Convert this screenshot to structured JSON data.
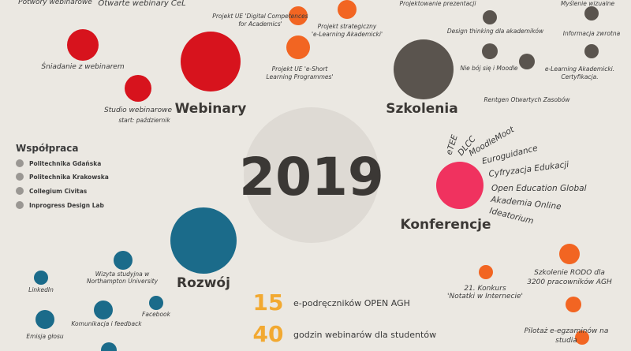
{
  "top": [
    "Potwory webinarowe",
    "Otwarte webinary CeL"
  ],
  "year": "2019",
  "webinary": {
    "title": "Webinary",
    "items": [
      "Śniadanie z webinarem",
      "Studio webinarowe"
    ],
    "note": "start: październik"
  },
  "projects": [
    [
      "Projekt UE 'Digital Competences",
      "for Academics'"
    ],
    [
      "Projekt  strategiczny",
      "'e-Learning Akademicki'"
    ],
    [
      "Projekt UE 'e-Short",
      "Learning Programmes'"
    ]
  ],
  "szkolenia": {
    "title": "Szkolenia",
    "items": [
      "Projektowanie prezentacji",
      "Myślenie wizualne",
      "Design thinking dla akademików",
      "Informacja zwrotna",
      "Nie bój się i Moodle",
      "e-Learning Akademicki.",
      "Certyfikacja.",
      "Rentgen Otwartych Zasobów"
    ]
  },
  "wspolpraca": {
    "title": "Współpraca",
    "items": [
      "Politechnika Gdańska",
      "Politechnika Krakowska",
      "Collegium Civitas",
      "Inprogress Design Lab"
    ]
  },
  "konferencje": {
    "title": "Konferencje",
    "items": [
      "eTEE",
      "DLCC",
      "MoodleMoot",
      "Euroguidance",
      "Cyfryzacja Edukacji",
      "Open Education Global",
      "Akademia Online",
      "Ideatorium"
    ]
  },
  "rozwoj": {
    "title": "Rozwój",
    "items": [
      "Wizyta studyjna w",
      "Northampton University",
      "LinkedIn",
      "Komunikacja i feedback",
      "Facebook",
      "Emisja głosu"
    ]
  },
  "stats": [
    {
      "number": "15",
      "label": "e-podręczników OPEN AGH"
    },
    {
      "number": "40",
      "label": "godzin webinarów dla studentów"
    }
  ],
  "other": [
    [
      "21. Konkurs",
      "'Notatki w Internecie'"
    ],
    [
      "Szkolenie RODO dla",
      "3200 pracowników AGH"
    ],
    [
      "Pilotaż e-egzaminów na",
      "studia"
    ]
  ]
}
